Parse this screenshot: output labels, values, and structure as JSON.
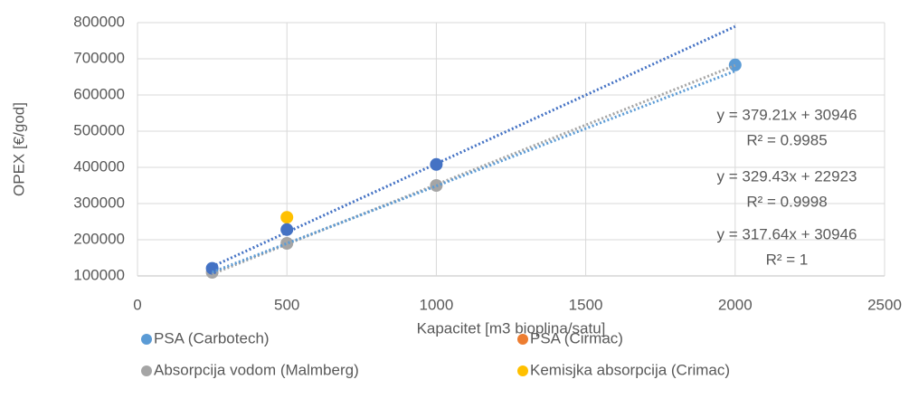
{
  "chart_data": {
    "type": "scatter",
    "xlabel": "Kapacitet [m3 bioplina/satu]",
    "ylabel": "OPEX [€/god]",
    "xlim": [
      0,
      2500
    ],
    "ylim": [
      100000,
      800000
    ],
    "xticks": [
      0,
      500,
      1000,
      1500,
      2000,
      2500
    ],
    "yticks": [
      100000,
      200000,
      300000,
      400000,
      500000,
      600000,
      700000,
      800000
    ],
    "grid": true,
    "legend": "bottom",
    "series": [
      {
        "name": "PSA (Carbotech)",
        "color": "#5b9bd5",
        "x": [
          2000
        ],
        "values": [
          683000
        ]
      },
      {
        "name": "PSA (Cirmac)",
        "color": "#ed7d31",
        "x": [],
        "values": []
      },
      {
        "name": "Absorpcija vodom (Malmberg)",
        "color": "#a5a5a5",
        "x": [
          250,
          500,
          1000
        ],
        "values": [
          110000,
          190000,
          350000
        ]
      },
      {
        "name": "Kemisjka absorpcija (Crimac)",
        "color": "#ffc000",
        "x": [
          500
        ],
        "values": [
          262000
        ]
      },
      {
        "color": "#4472c4",
        "x": [
          250,
          500,
          1000
        ],
        "values": [
          121000,
          228000,
          408000
        ]
      }
    ],
    "trendlines": [
      {
        "color": "#4472c4",
        "slope": 379.21,
        "intercept": 30946,
        "x_range": [
          250,
          2000
        ],
        "equation": "y = 379.21x + 30946",
        "r2": "R² = 0.9985"
      },
      {
        "color": "#a5a5a5",
        "slope": 329.43,
        "intercept": 22923,
        "x_range": [
          250,
          2000
        ],
        "equation": "y = 329.43x + 22923",
        "r2": "R² = 0.9998"
      },
      {
        "color": "#5b9bd5",
        "slope": 317.64,
        "intercept": 30946,
        "x_range": [
          250,
          2000
        ],
        "equation": "y = 317.64x + 30946",
        "r2": "R² = 1"
      }
    ]
  }
}
